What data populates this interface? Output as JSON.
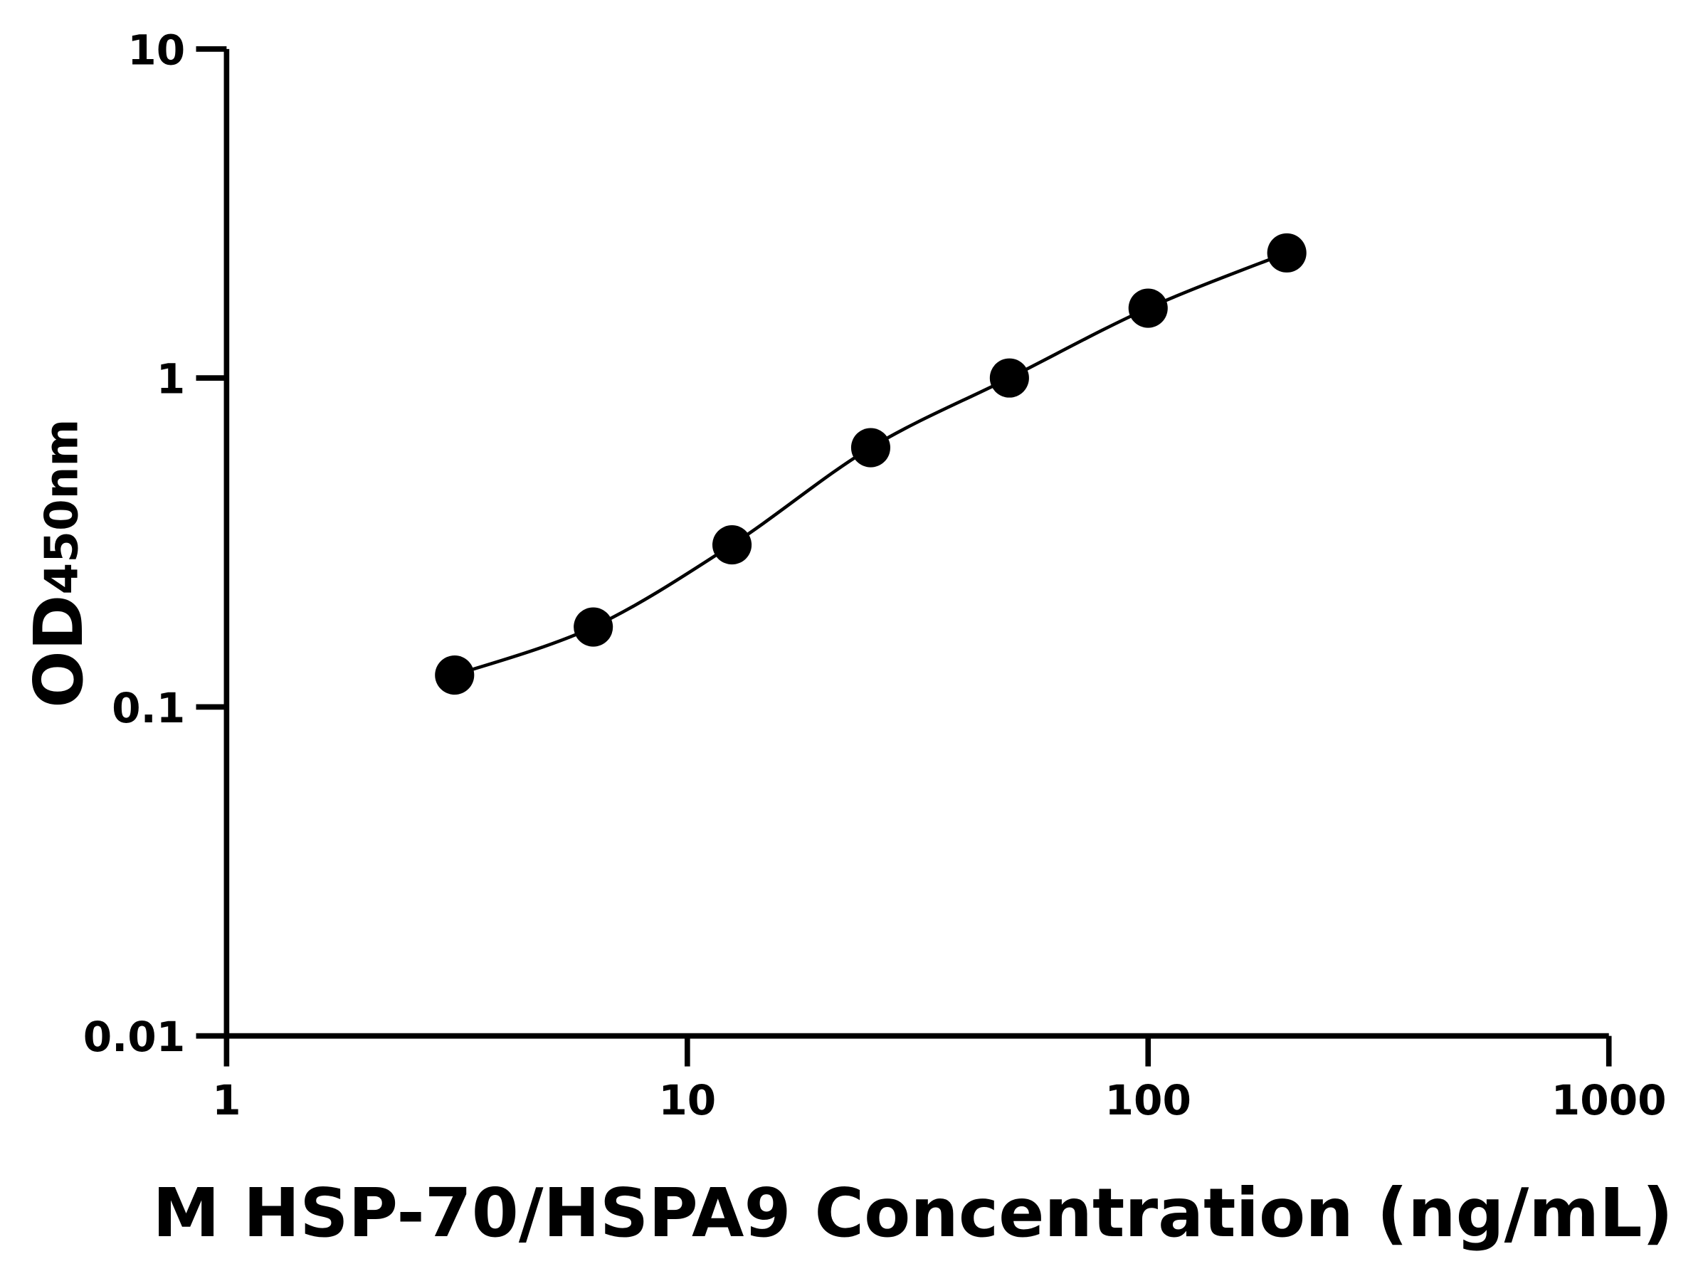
{
  "chart_data": {
    "type": "line",
    "x_label": "M HSP-70/HSPA9 Concentration (ng/mL)",
    "y_label": "OD",
    "y_label_sub": "450nm",
    "x": [
      3.125,
      6.25,
      12.5,
      25,
      50,
      100,
      200
    ],
    "series": [
      {
        "color": "#000000",
        "values": [
          0.125,
          0.175,
          0.311,
          0.614,
          1.0,
          1.63,
          2.4
        ]
      }
    ],
    "xscale": "log",
    "yscale": "log",
    "xlim": [
      1,
      1000
    ],
    "ylim": [
      0.01,
      10
    ],
    "xticks": [
      1,
      10,
      100,
      1000
    ],
    "yticks": [
      0.01,
      0.1,
      1,
      10
    ],
    "markers": true
  }
}
